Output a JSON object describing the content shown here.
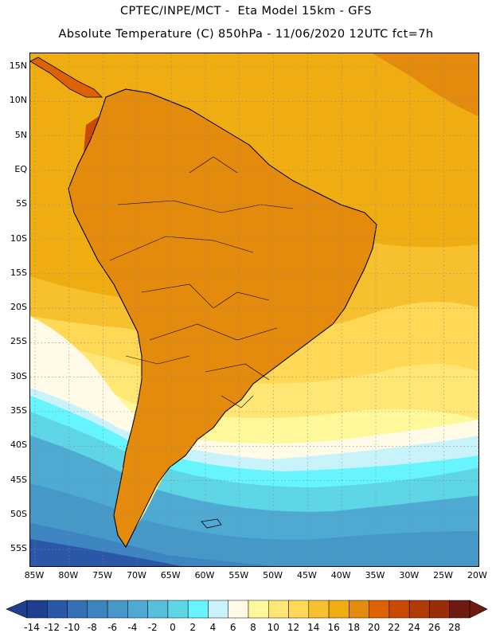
{
  "header": {
    "line1": "CPTEC/INPE/MCT -  Eta Model 15km - GFS",
    "line2": "Absolute Temperature (C) 850hPa - 11/06/2020 12UTC fct=7h"
  },
  "axes": {
    "lat_labels": [
      "15N",
      "10N",
      "5N",
      "EQ",
      "5S",
      "10S",
      "15S",
      "20S",
      "25S",
      "30S",
      "35S",
      "40S",
      "45S",
      "50S",
      "55S"
    ],
    "lon_labels": [
      "85W",
      "80W",
      "75W",
      "70W",
      "65W",
      "60W",
      "55W",
      "50W",
      "45W",
      "40W",
      "35W",
      "30W",
      "25W",
      "20W"
    ]
  },
  "legend": {
    "labels": [
      "-14",
      "-12",
      "-10",
      "-8",
      "-6",
      "-4",
      "-2",
      "0",
      "2",
      "4",
      "6",
      "8",
      "10",
      "12",
      "14",
      "16",
      "18",
      "20",
      "22",
      "24",
      "26",
      "28"
    ],
    "colors": [
      "#1e3f8f",
      "#2b57a8",
      "#3370b5",
      "#3c85c0",
      "#4698c8",
      "#4eaad2",
      "#56bfdc",
      "#5fd6e6",
      "#66f5ff",
      "#c9f3fb",
      "#fffbe6",
      "#fff89a",
      "#ffe675",
      "#ffd955",
      "#f6c02e",
      "#efad12",
      "#e48a0c",
      "#dd6204",
      "#c84a03",
      "#b23a05",
      "#9a2c09",
      "#6e1a10"
    ]
  },
  "map": {
    "region": "South America",
    "colors": {
      "ocean_tropical": "#efad12",
      "ocean_warm": "#f6c02e",
      "land_hot": "#dd6204",
      "land_warm": "#e48a0c",
      "hotspot": "#6e1a10",
      "cold_deep": "#2b57a8",
      "cold_mid": "#4698c8",
      "cyan": "#66f5ff",
      "pale": "#fffbe6"
    }
  }
}
